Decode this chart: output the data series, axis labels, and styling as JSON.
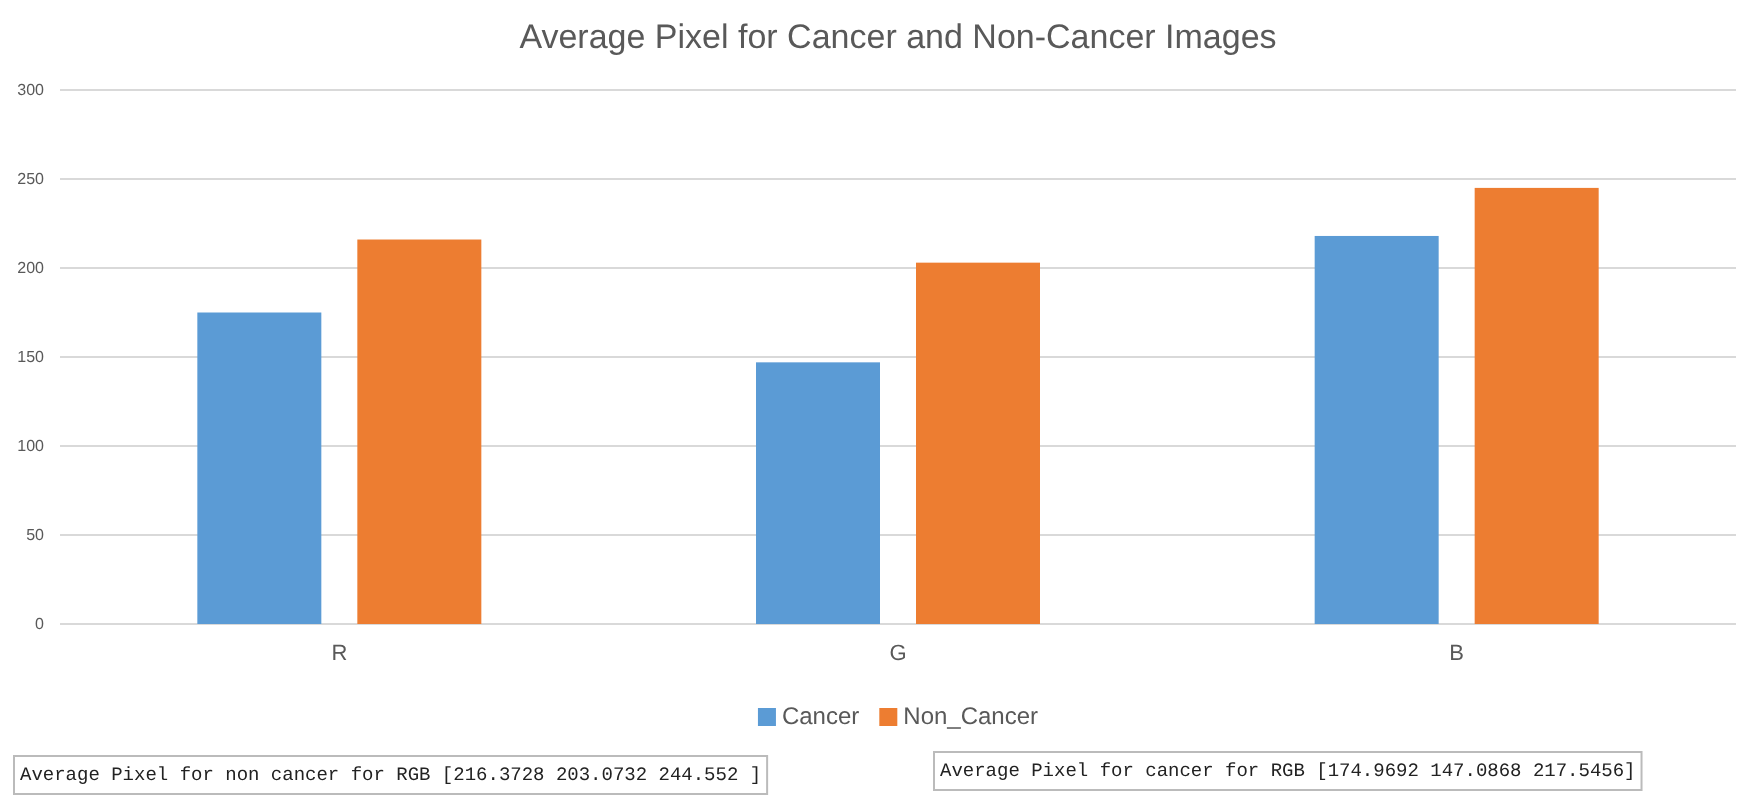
{
  "chart_data": {
    "type": "bar",
    "title": "Average Pixel for Cancer and Non-Cancer Images",
    "categories": [
      "R",
      "G",
      "B"
    ],
    "series": [
      {
        "name": "Cancer",
        "color": "#5b9bd5",
        "values": [
          175,
          147,
          218
        ]
      },
      {
        "name": "Non_Cancer",
        "color": "#ed7d31",
        "values": [
          216,
          203,
          245
        ]
      }
    ],
    "ylim": [
      0,
      300
    ],
    "yticks": [
      0,
      50,
      100,
      150,
      200,
      250,
      300
    ],
    "grid": "y",
    "legend": "bottom",
    "annotations": [
      "Average Pixel for non cancer for RGB  [216.3728 203.0732 244.552 ]",
      "Average Pixel for cancer for RGB [174.9692 147.0868 217.5456]"
    ]
  }
}
